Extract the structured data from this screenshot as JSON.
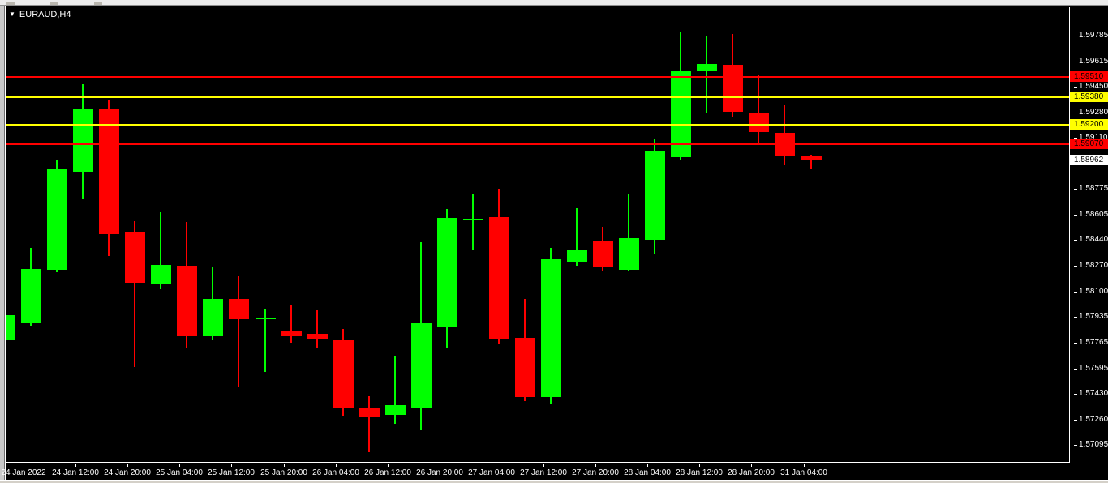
{
  "symbol_bar": {
    "dropdown_icon": "▼",
    "symbol_label": "EURAUD,H4"
  },
  "price_axis": {
    "ticks": [
      "1.59785",
      "1.59615",
      "1.59450",
      "1.59280",
      "1.59110",
      "1.58775",
      "1.58605",
      "1.58440",
      "1.58270",
      "1.58100",
      "1.57935",
      "1.57765",
      "1.57595",
      "1.57430",
      "1.57260",
      "1.57095"
    ]
  },
  "time_axis": {
    "labels": [
      {
        "text": "24 Jan 2022",
        "candle_index": 1
      },
      {
        "text": "24 Jan 12:00",
        "candle_index": 3
      },
      {
        "text": "24 Jan 20:00",
        "candle_index": 5
      },
      {
        "text": "25 Jan 04:00",
        "candle_index": 7
      },
      {
        "text": "25 Jan 12:00",
        "candle_index": 9
      },
      {
        "text": "25 Jan 20:00",
        "candle_index": 11
      },
      {
        "text": "26 Jan 04:00",
        "candle_index": 13
      },
      {
        "text": "26 Jan 12:00",
        "candle_index": 15
      },
      {
        "text": "26 Jan 20:00",
        "candle_index": 17
      },
      {
        "text": "27 Jan 04:00",
        "candle_index": 19
      },
      {
        "text": "27 Jan 12:00",
        "candle_index": 21
      },
      {
        "text": "27 Jan 20:00",
        "candle_index": 23
      },
      {
        "text": "28 Jan 04:00",
        "candle_index": 25
      },
      {
        "text": "28 Jan 12:00",
        "candle_index": 27
      },
      {
        "text": "28 Jan 20:00",
        "candle_index": 29
      },
      {
        "text": "31 Jan 04:00",
        "candle_index": 31
      }
    ]
  },
  "levels": [
    {
      "price": 1.5951,
      "label": "1.59510",
      "color": "#ff0000"
    },
    {
      "price": 1.5938,
      "label": "1.59380",
      "color": "#ffff00"
    },
    {
      "price": 1.592,
      "label": "1.59200",
      "color": "#ffff00"
    },
    {
      "price": 1.5907,
      "label": "1.59070",
      "color": "#ff0000"
    }
  ],
  "current_price_tag": {
    "text": "1.58962",
    "price": 1.58962,
    "bg": "#ffffff"
  },
  "period_separator": {
    "candle_index": 29
  },
  "chart_data": {
    "type": "candlestick",
    "symbol": "EURAUD",
    "timeframe": "H4",
    "title": "EURAUD,H4",
    "bull_color": "#00ff00",
    "bear_color": "#ff0000",
    "background": "#000000",
    "grid": false,
    "legend_position": "none",
    "y_range_visible": [
      1.5698,
      1.5997
    ],
    "x_label_step_hours": 8,
    "candles": [
      {
        "time": "24 Jan 00:00",
        "o": 1.57788,
        "h": 1.58112,
        "l": 1.57606,
        "c": 1.57947
      },
      {
        "time": "24 Jan 04:00",
        "o": 1.57892,
        "h": 1.58389,
        "l": 1.57874,
        "c": 1.58247
      },
      {
        "time": "24 Jan 08:00",
        "o": 1.58242,
        "h": 1.58963,
        "l": 1.5823,
        "c": 1.58904
      },
      {
        "time": "24 Jan 12:00",
        "o": 1.5889,
        "h": 1.59466,
        "l": 1.58709,
        "c": 1.59306
      },
      {
        "time": "24 Jan 16:00",
        "o": 1.59306,
        "h": 1.59359,
        "l": 1.58336,
        "c": 1.58478
      },
      {
        "time": "24 Jan 20:00",
        "o": 1.58496,
        "h": 1.58562,
        "l": 1.57606,
        "c": 1.58159
      },
      {
        "time": "25 Jan 00:00",
        "o": 1.5815,
        "h": 1.5862,
        "l": 1.58123,
        "c": 1.58274
      },
      {
        "time": "25 Jan 04:00",
        "o": 1.58272,
        "h": 1.58559,
        "l": 1.57733,
        "c": 1.57808
      },
      {
        "time": "25 Jan 08:00",
        "o": 1.57808,
        "h": 1.5826,
        "l": 1.57782,
        "c": 1.58054
      },
      {
        "time": "25 Jan 12:00",
        "o": 1.58054,
        "h": 1.58209,
        "l": 1.57473,
        "c": 1.57921
      },
      {
        "time": "25 Jan 16:00",
        "o": 1.57921,
        "h": 1.5799,
        "l": 1.57574,
        "c": 1.57931
      },
      {
        "time": "25 Jan 20:00",
        "o": 1.57846,
        "h": 1.58017,
        "l": 1.57766,
        "c": 1.57814
      },
      {
        "time": "26 Jan 00:00",
        "o": 1.57825,
        "h": 1.57979,
        "l": 1.57733,
        "c": 1.57793
      },
      {
        "time": "26 Jan 04:00",
        "o": 1.57787,
        "h": 1.57856,
        "l": 1.57286,
        "c": 1.57334
      },
      {
        "time": "26 Jan 08:00",
        "o": 1.5734,
        "h": 1.57414,
        "l": 1.57047,
        "c": 1.57281
      },
      {
        "time": "26 Jan 12:00",
        "o": 1.57292,
        "h": 1.57681,
        "l": 1.57233,
        "c": 1.57356
      },
      {
        "time": "26 Jan 16:00",
        "o": 1.5734,
        "h": 1.58425,
        "l": 1.57191,
        "c": 1.579
      },
      {
        "time": "26 Jan 20:00",
        "o": 1.57872,
        "h": 1.58645,
        "l": 1.57733,
        "c": 1.58586
      },
      {
        "time": "27 Jan 00:00",
        "o": 1.5857,
        "h": 1.58746,
        "l": 1.58379,
        "c": 1.58581
      },
      {
        "time": "27 Jan 04:00",
        "o": 1.58592,
        "h": 1.58778,
        "l": 1.57755,
        "c": 1.57793
      },
      {
        "time": "27 Jan 08:00",
        "o": 1.57798,
        "h": 1.58054,
        "l": 1.57382,
        "c": 1.57409
      },
      {
        "time": "27 Jan 12:00",
        "o": 1.57409,
        "h": 1.58389,
        "l": 1.57361,
        "c": 1.58315
      },
      {
        "time": "27 Jan 16:00",
        "o": 1.58299,
        "h": 1.5865,
        "l": 1.58272,
        "c": 1.58373
      },
      {
        "time": "27 Jan 20:00",
        "o": 1.58432,
        "h": 1.58528,
        "l": 1.5824,
        "c": 1.58262
      },
      {
        "time": "28 Jan 00:00",
        "o": 1.58246,
        "h": 1.58746,
        "l": 1.58235,
        "c": 1.58453
      },
      {
        "time": "28 Jan 04:00",
        "o": 1.58443,
        "h": 1.59103,
        "l": 1.58347,
        "c": 1.59029
      },
      {
        "time": "28 Jan 08:00",
        "o": 1.58986,
        "h": 1.59812,
        "l": 1.58965,
        "c": 1.59551
      },
      {
        "time": "28 Jan 12:00",
        "o": 1.59551,
        "h": 1.5978,
        "l": 1.59279,
        "c": 1.59599
      },
      {
        "time": "28 Jan 16:00",
        "o": 1.59593,
        "h": 1.59796,
        "l": 1.59252,
        "c": 1.59284
      },
      {
        "time": "28 Jan 20:00",
        "o": 1.59279,
        "h": 1.59524,
        "l": 1.59071,
        "c": 1.59151
      },
      {
        "time": "31 Jan 00:00",
        "o": 1.59146,
        "h": 1.59332,
        "l": 1.58933,
        "c": 1.58997
      },
      {
        "time": "31 Jan 04:00",
        "o": 1.58997,
        "h": 1.59002,
        "l": 1.58906,
        "c": 1.58962
      }
    ]
  }
}
